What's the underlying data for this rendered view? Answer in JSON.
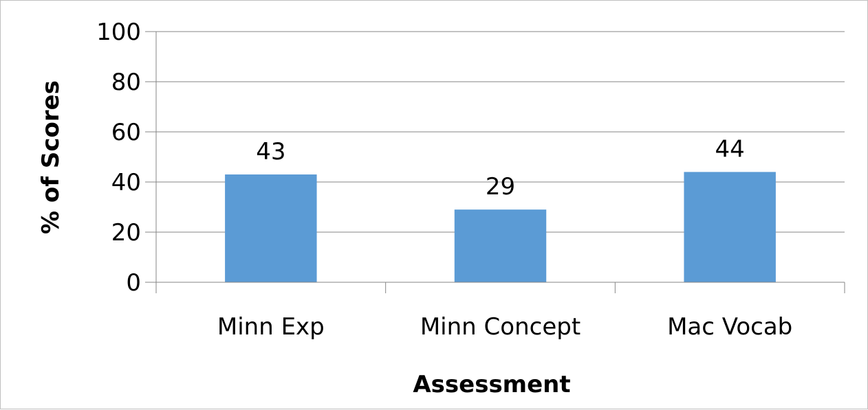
{
  "chart_data": {
    "type": "bar",
    "categories": [
      "Minn Exp",
      "Minn Concept",
      "Mac Vocab"
    ],
    "values": [
      43,
      29,
      44
    ],
    "data_labels": [
      "43",
      "29",
      "44"
    ],
    "title": "",
    "xlabel": "Assessment",
    "ylabel": "% of Scores",
    "ylim": [
      0,
      100
    ],
    "yticks": [
      0,
      20,
      40,
      60,
      80,
      100
    ],
    "ytick_labels": [
      "0",
      "20",
      "40",
      "60",
      "80",
      "100"
    ],
    "grid": true,
    "legend": "none",
    "colors": {
      "bar": "#5b9bd5",
      "grid": "#868686",
      "axis": "#868686",
      "border": "#bfbfbf"
    }
  }
}
